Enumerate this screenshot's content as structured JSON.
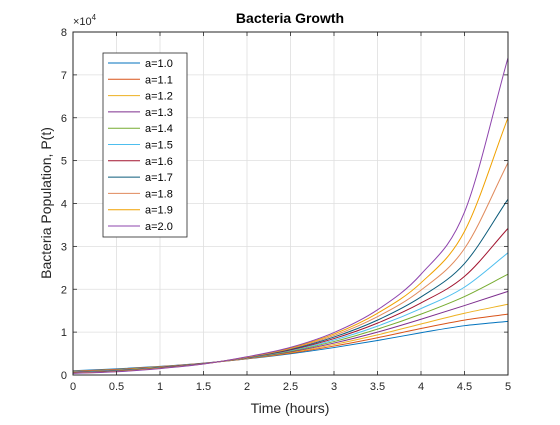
{
  "chart_data": {
    "type": "line",
    "title": "Bacteria Growth",
    "xlabel": "Time (hours)",
    "ylabel": "Bacteria Population, P(t)",
    "xlim": [
      0,
      5
    ],
    "ylim": [
      0,
      80000
    ],
    "x_ticks": [
      "0",
      "0.5",
      "1",
      "1.5",
      "2",
      "2.5",
      "3",
      "3.5",
      "4",
      "4.5",
      "5"
    ],
    "y_ticks": [
      "0",
      "1",
      "2",
      "3",
      "4",
      "5",
      "6",
      "7",
      "8"
    ],
    "y_exponent_base": "×10",
    "y_exponent_power": "4",
    "grid": true,
    "legend_position": "top-left",
    "x": [
      0,
      0.5,
      1,
      1.5,
      2,
      2.5,
      3,
      3.5,
      4,
      4.5,
      5
    ],
    "series": [
      {
        "name": "a=1.0",
        "color": "#0072BD",
        "values": [
          1000,
          1420,
          2000,
          2760,
          3750,
          4950,
          6400,
          8050,
          9850,
          11500,
          12500
        ]
      },
      {
        "name": "a=1.1",
        "color": "#D95319",
        "values": [
          900,
          1320,
          1950,
          2740,
          3800,
          5100,
          6750,
          8700,
          10850,
          12800,
          14200
        ]
      },
      {
        "name": "a=1.2",
        "color": "#EDB120",
        "values": [
          820,
          1240,
          1900,
          2720,
          3850,
          5250,
          7100,
          9350,
          11900,
          14400,
          16500
        ]
      },
      {
        "name": "a=1.3",
        "color": "#7E2F8E",
        "values": [
          740,
          1160,
          1850,
          2700,
          3900,
          5400,
          7450,
          10000,
          13000,
          16200,
          19500
        ]
      },
      {
        "name": "a=1.4",
        "color": "#77AC30",
        "values": [
          670,
          1090,
          1800,
          2680,
          3950,
          5550,
          7800,
          10700,
          14200,
          18300,
          23500
        ]
      },
      {
        "name": "a=1.5",
        "color": "#4DBEEE",
        "values": [
          610,
          1020,
          1750,
          2660,
          4000,
          5700,
          8150,
          11400,
          15500,
          20500,
          28500
        ]
      },
      {
        "name": "a=1.6",
        "color": "#A2142F",
        "values": [
          550,
          960,
          1700,
          2640,
          4050,
          5850,
          8500,
          12100,
          16800,
          23000,
          34200
        ]
      },
      {
        "name": "a=1.7",
        "color": "#0B5B7A",
        "values": [
          500,
          900,
          1650,
          2620,
          4100,
          6000,
          8850,
          12800,
          18200,
          26000,
          41000
        ]
      },
      {
        "name": "a=1.8",
        "color": "#E08A5C",
        "values": [
          450,
          850,
          1600,
          2600,
          4150,
          6150,
          9200,
          13600,
          19800,
          29500,
          49500
        ]
      },
      {
        "name": "a=1.9",
        "color": "#F0A100",
        "values": [
          410,
          800,
          1550,
          2580,
          4200,
          6300,
          9550,
          14400,
          21500,
          33500,
          60000
        ]
      },
      {
        "name": "a=2.0",
        "color": "#8E44AD",
        "values": [
          370,
          750,
          1500,
          2560,
          4250,
          6450,
          9900,
          15200,
          23500,
          38000,
          74000
        ]
      }
    ]
  }
}
